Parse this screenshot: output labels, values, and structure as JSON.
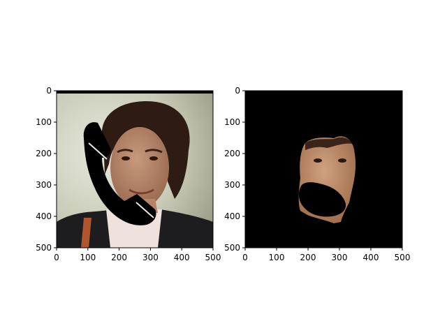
{
  "chart_data": [
    {
      "type": "image",
      "title": "",
      "xlabel": "",
      "ylabel": "",
      "xlim": [
        0,
        500
      ],
      "ylim": [
        500,
        0
      ],
      "xticks": [
        0,
        100,
        200,
        300,
        400,
        500
      ],
      "yticks": [
        0,
        100,
        200,
        300,
        400,
        500
      ],
      "grid": false,
      "content": "portrait photo with a black telephone-shaped occlusion over the lower face"
    },
    {
      "type": "image",
      "title": "",
      "xlabel": "",
      "ylabel": "",
      "xlim": [
        0,
        500
      ],
      "ylim": [
        500,
        0
      ],
      "xticks": [
        0,
        100,
        200,
        300,
        400,
        500
      ],
      "yticks": [
        0,
        100,
        200,
        300,
        400,
        500
      ],
      "grid": false,
      "content": "face segmentation mask on black background with occluded region removed"
    }
  ],
  "colors": {
    "background": "#ffffff",
    "axis": "#000000",
    "mask_background": "#000000"
  }
}
